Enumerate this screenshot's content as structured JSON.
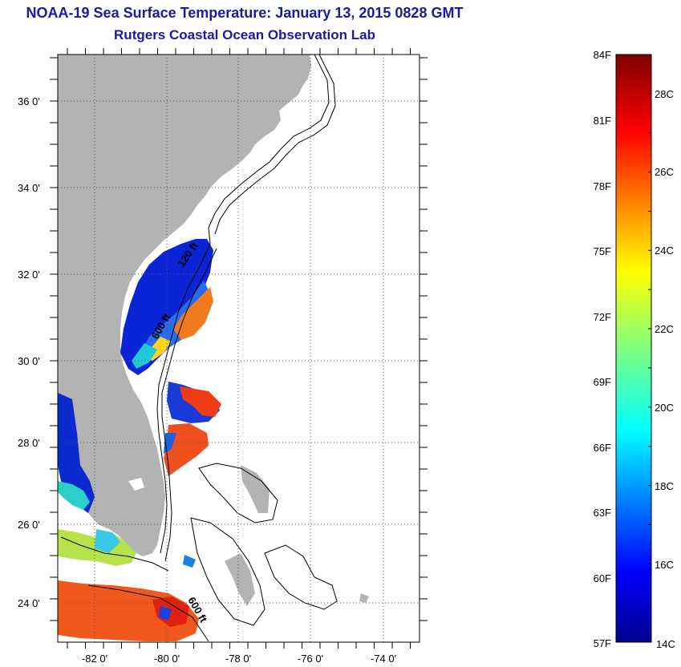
{
  "header": {
    "title": "NOAA-19 Sea Surface Temperature:  January 13, 2015 0828 GMT",
    "subtitle": "Rutgers Coastal Ocean Observation Lab"
  },
  "map": {
    "lon_ticks": [
      "-82 0'",
      "-80 0'",
      "-78 0'",
      "-76 0'",
      "-74 0'"
    ],
    "lat_ticks": [
      "36 0'",
      "34 0'",
      "32 0'",
      "30 0'",
      "28 0'",
      "26 0'",
      "24 0'"
    ],
    "contour_labels": [
      "120 ft",
      "600 ft",
      "600 ft"
    ],
    "colors": {
      "land": "#b3b3b3",
      "ocean": "#ffffff",
      "grid": "#555555"
    }
  },
  "colorbar": {
    "fahrenheit_labels": [
      "84F",
      "81F",
      "78F",
      "75F",
      "72F",
      "69F",
      "66F",
      "63F",
      "60F",
      "57F"
    ],
    "celsius_labels": [
      "28C",
      "26C",
      "24C",
      "22C",
      "20C",
      "18C",
      "16C",
      "14C"
    ],
    "range_c": [
      14,
      29
    ]
  }
}
